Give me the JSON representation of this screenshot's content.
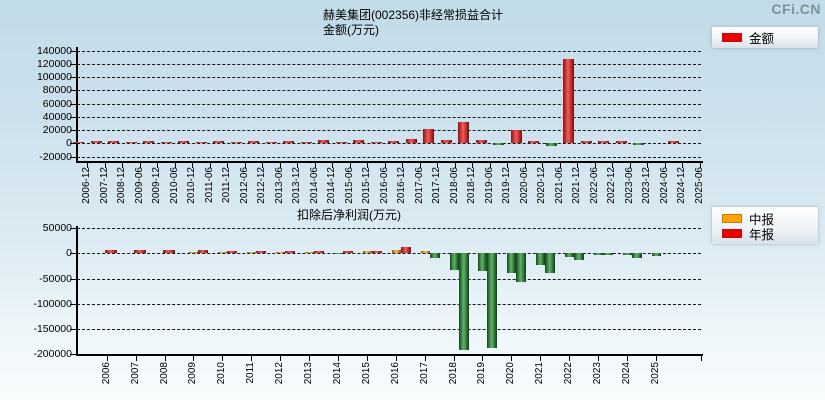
{
  "page": {
    "logo": "CFi.CN"
  },
  "chart_data": [
    {
      "type": "bar",
      "title": "赫美集团(002356)非经常损益合计",
      "subtitle": "金额(万元)",
      "legend": [
        {
          "label": "金额",
          "color": "#ee0000"
        }
      ],
      "legend_position": "top-right",
      "grid": "dashed-horizontal",
      "ylim": [
        -20000,
        140000
      ],
      "yticks": [
        140000,
        120000,
        100000,
        80000,
        60000,
        40000,
        20000,
        0,
        -20000
      ],
      "positive_color": "#cc3333",
      "negative_color": "#3f8f4a",
      "categories": [
        "2006-12",
        "2007-12",
        "2008-12",
        "2009-06",
        "2009-12",
        "2010-06",
        "2010-12",
        "2011-06",
        "2011-12",
        "2012-06",
        "2012-12",
        "2013-06",
        "2013-12",
        "2014-06",
        "2014-12",
        "2015-06",
        "2015-12",
        "2016-06",
        "2016-12",
        "2017-06",
        "2017-12",
        "2018-06",
        "2018-12",
        "2019-06",
        "2019-12",
        "2020-06",
        "2020-12",
        "2021-06",
        "2021-12",
        "2022-06",
        "2022-12",
        "2023-06",
        "2023-12",
        "2024-06",
        "2024-12",
        "2025-06"
      ],
      "values": [
        2500,
        3000,
        3000,
        2000,
        3000,
        2000,
        3000,
        2000,
        3000,
        2000,
        3000,
        2000,
        3000,
        2000,
        5000,
        2500,
        5500,
        2500,
        3000,
        6000,
        22000,
        5000,
        32000,
        5000,
        -2000,
        20000,
        4000,
        -4000,
        127000,
        4000,
        4000,
        4000,
        -2000,
        0,
        4000,
        0
      ]
    },
    {
      "type": "bar",
      "title": "扣除后净利润(万元)",
      "legend": [
        {
          "label": "中报",
          "color": "#ffa500"
        },
        {
          "label": "年报",
          "color": "#ee0000"
        }
      ],
      "legend_position": "top-right",
      "grid": "dashed-horizontal",
      "ylim": [
        -200000,
        50000
      ],
      "yticks": [
        50000,
        0,
        -50000,
        -100000,
        -150000,
        -200000
      ],
      "negative_color": "#3f8f4a",
      "categories": [
        "2006",
        "2007",
        "2008",
        "2009",
        "2010",
        "2011",
        "2012",
        "2013",
        "2014",
        "2015",
        "2016",
        "2017",
        "2018",
        "2019",
        "2020",
        "2021",
        "2022",
        "2023",
        "2024",
        "2025"
      ],
      "series": [
        {
          "name": "中报",
          "values": [
            null,
            null,
            null,
            3000,
            3000,
            3000,
            2500,
            2500,
            -1500,
            4000,
            7500,
            4000,
            -34000,
            -36000,
            -39000,
            -24000,
            -8000,
            -3000,
            -3000,
            -5000
          ]
        },
        {
          "name": "年报",
          "values": [
            6000,
            6000,
            7000,
            6000,
            4500,
            4500,
            4000,
            4000,
            4500,
            5500,
            12000,
            -10000,
            -191000,
            -188000,
            -56000,
            -39000,
            -13500,
            -3500,
            -10000,
            null
          ]
        }
      ]
    }
  ]
}
